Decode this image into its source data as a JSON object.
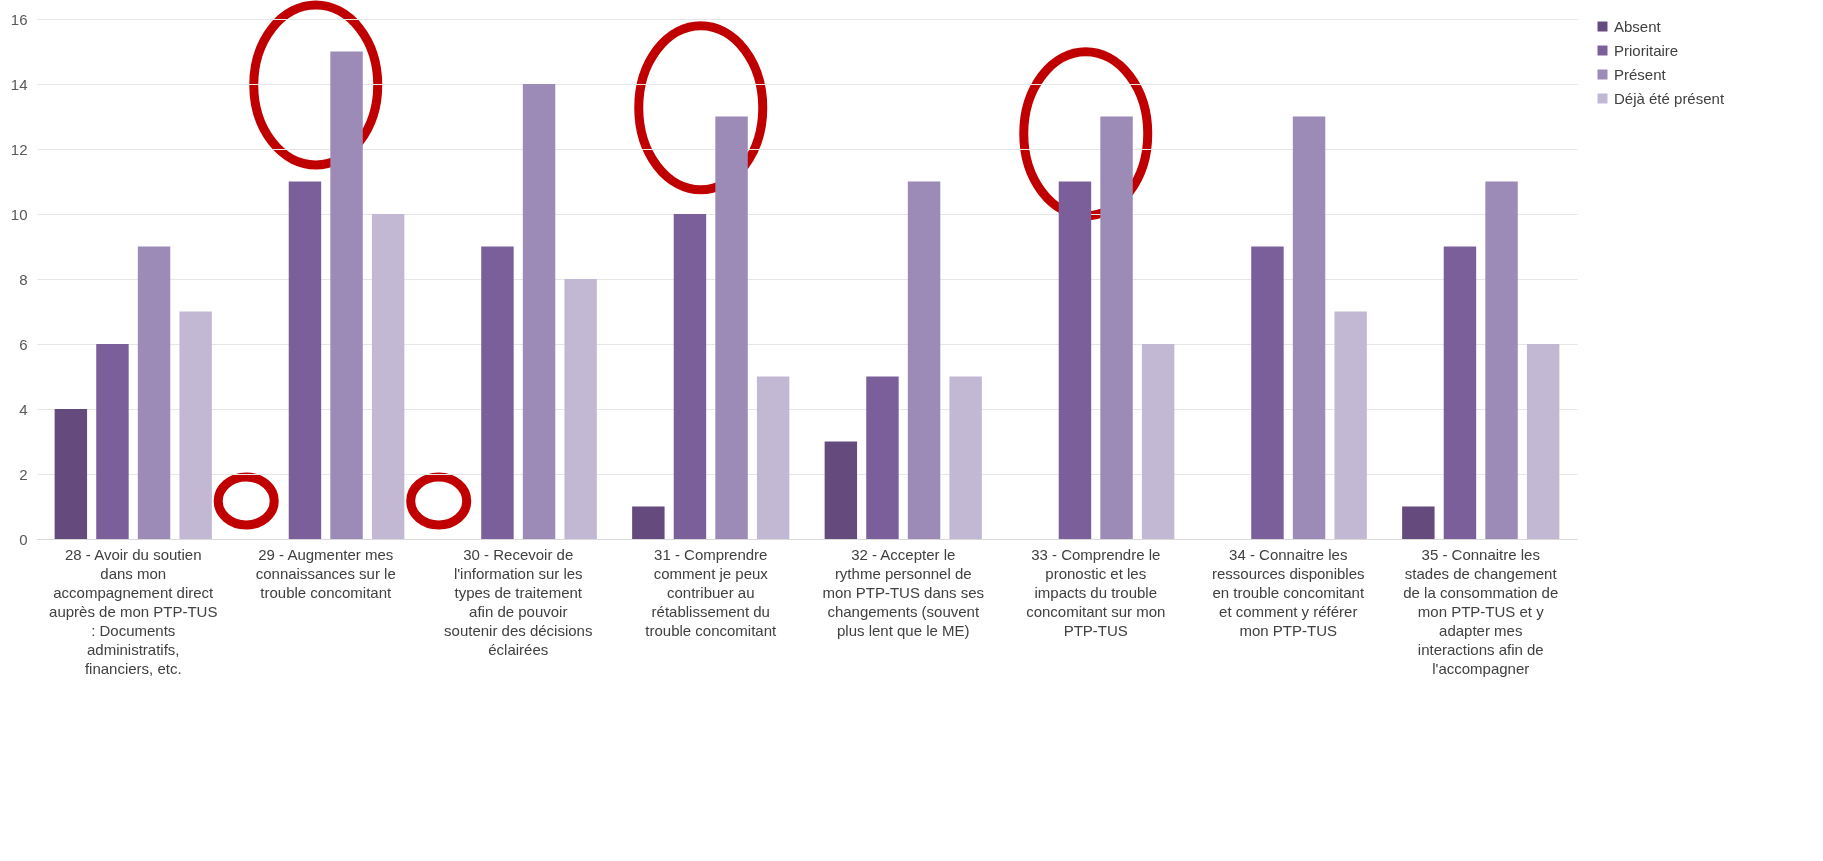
{
  "chart_data": {
    "type": "bar",
    "categories": [
      "28 - Avoir du soutien dans mon accompagnement direct auprès de mon PTP-TUS : Documents administratifs, financiers, etc.",
      "29 - Augmenter mes connaissances sur le trouble concomitant",
      "30 - Recevoir de l'information sur les types de traitement afin de pouvoir soutenir des décisions éclairées",
      "31 - Comprendre comment je peux contribuer au rétablissement du trouble concomitant",
      "32 - Accepter le rythme personnel de mon PTP-TUS dans ses changements (souvent plus lent que le ME)",
      "33 - Comprendre le pronostic et les impacts du trouble concomitant sur mon PTP-TUS",
      "34 - Connaitre les ressources disponibles en trouble concomitant et comment y référer mon PTP-TUS",
      "35 - Connaitre les stades de changement de la consommation de mon PTP-TUS et y adapter mes interactions afin de l'accompagner"
    ],
    "series": [
      {
        "name": "Absent",
        "color": "#654a7e",
        "values": [
          4,
          0,
          0,
          1,
          3,
          0,
          0,
          1
        ]
      },
      {
        "name": "Prioritaire",
        "color": "#7b5f9a",
        "values": [
          6,
          11,
          9,
          10,
          5,
          11,
          9,
          9
        ]
      },
      {
        "name": "Présent",
        "color": "#9c8ab7",
        "values": [
          9,
          15,
          14,
          13,
          11,
          13,
          13,
          11
        ]
      },
      {
        "name": "Déjà été présent",
        "color": "#c3b8d3",
        "values": [
          7,
          10,
          8,
          5,
          5,
          6,
          7,
          6
        ]
      }
    ],
    "ylim": [
      0,
      16
    ],
    "yticks": [
      0,
      2,
      4,
      6,
      8,
      10,
      12,
      14,
      16
    ],
    "grid": "y",
    "legend": "right"
  }
}
